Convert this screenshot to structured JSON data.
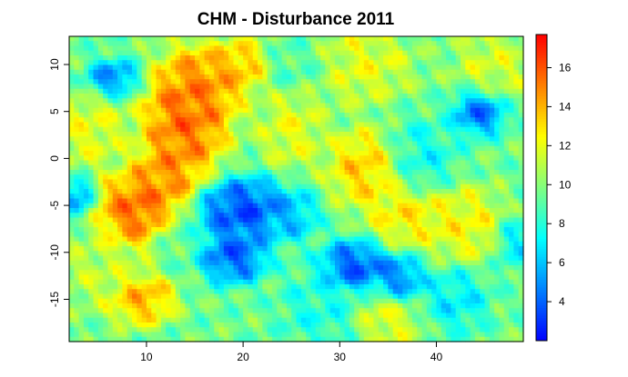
{
  "chart_data": {
    "type": "heatmap",
    "title": "CHM - Disturbance 2011",
    "xlabel": "",
    "ylabel": "",
    "xlim": [
      2,
      49
    ],
    "ylim": [
      -19.5,
      13
    ],
    "x_ticks": [
      10,
      20,
      30,
      40
    ],
    "y_ticks": [
      10,
      5,
      0,
      -5,
      -10,
      -15
    ],
    "colorbar": {
      "range": [
        2,
        17.7
      ],
      "ticks": [
        4,
        6,
        8,
        10,
        12,
        14,
        16
      ],
      "colors": [
        "#0000ff",
        "#0080ff",
        "#00ffff",
        "#80ff80",
        "#ffff00",
        "#ff8000",
        "#ff0000"
      ]
    },
    "grid": false,
    "legend": "right",
    "fields": [
      {
        "x": 14,
        "y": 4,
        "value": 16.8,
        "sx": 3.2,
        "sy": 4.5
      },
      {
        "x": 16,
        "y": 8,
        "value": 15.5,
        "sx": 3,
        "sy": 3
      },
      {
        "x": 9,
        "y": -5.5,
        "value": 16.8,
        "sx": 3,
        "sy": 3
      },
      {
        "x": 12,
        "y": -2,
        "value": 15.5,
        "sx": 2.5,
        "sy": 2.5
      },
      {
        "x": 9.5,
        "y": -15,
        "value": 15,
        "sx": 2.5,
        "sy": 2
      },
      {
        "x": 20,
        "y": 10,
        "value": 14.5,
        "sx": 2,
        "sy": 2
      },
      {
        "x": 33,
        "y": -1,
        "value": 14.5,
        "sx": 3,
        "sy": 3
      },
      {
        "x": 37,
        "y": -6,
        "value": 13.5,
        "sx": 3,
        "sy": 2.5
      },
      {
        "x": 43,
        "y": -7,
        "value": 13,
        "sx": 3,
        "sy": 3
      },
      {
        "x": 4,
        "y": 3,
        "value": 12.5,
        "sx": 3,
        "sy": 3
      },
      {
        "x": 32,
        "y": 10,
        "value": 12.5,
        "sx": 4,
        "sy": 3
      },
      {
        "x": 25,
        "y": 3,
        "value": 12.5,
        "sx": 2.5,
        "sy": 3
      },
      {
        "x": 35,
        "y": -17,
        "value": 12.5,
        "sx": 2.5,
        "sy": 2.5
      },
      {
        "x": 46,
        "y": 10,
        "value": 12,
        "sx": 3,
        "sy": 3
      },
      {
        "x": 5,
        "y": -12,
        "value": 11.5,
        "sx": 3,
        "sy": 3
      },
      {
        "x": 20,
        "y": -5.5,
        "value": 2.3,
        "sx": 3.5,
        "sy": 2.5
      },
      {
        "x": 19,
        "y": -10.5,
        "value": 2.8,
        "sx": 2.5,
        "sy": 2
      },
      {
        "x": 31.5,
        "y": -11.5,
        "value": 2.5,
        "sx": 2.5,
        "sy": 2
      },
      {
        "x": 36,
        "y": -13,
        "value": 3.5,
        "sx": 2,
        "sy": 2
      },
      {
        "x": 44.5,
        "y": 5,
        "value": 3,
        "sx": 2,
        "sy": 1.8
      },
      {
        "x": 6.5,
        "y": 8.5,
        "value": 4,
        "sx": 2,
        "sy": 1.5
      },
      {
        "x": 3,
        "y": -4,
        "value": 4.5,
        "sx": 1.2,
        "sy": 1.5
      },
      {
        "x": 25,
        "y": -6,
        "value": 5.5,
        "sx": 2,
        "sy": 2
      },
      {
        "x": 38,
        "y": 0,
        "value": 7,
        "sx": 3,
        "sy": 3
      },
      {
        "x": 28,
        "y": -16,
        "value": 7.5,
        "sx": 3,
        "sy": 3
      },
      {
        "x": 42,
        "y": -15,
        "value": 6.5,
        "sx": 2.5,
        "sy": 2.5
      },
      {
        "x": 26,
        "y": 10,
        "value": 8.5,
        "sx": 3,
        "sy": 2
      },
      {
        "x": 48,
        "y": -9,
        "value": 6.5,
        "sx": 1.5,
        "sy": 2
      },
      {
        "x": 13,
        "y": -9,
        "value": 9,
        "sx": 2,
        "sy": 2
      }
    ]
  }
}
